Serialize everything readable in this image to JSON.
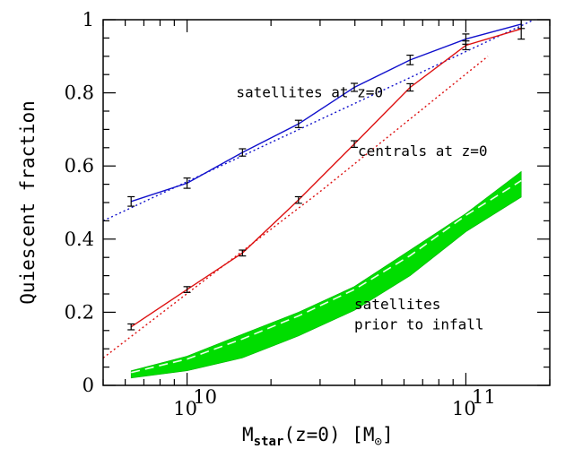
{
  "chart_data": {
    "type": "line",
    "xlabel_main": "M",
    "xlabel_sub": "star",
    "xlabel_rest": "(z=0) [M",
    "xlabel_sun": "⊙",
    "xlabel_close": "]",
    "ylabel": "Quiescent fraction",
    "x_scale": "log",
    "xlim": [
      5000000000.0,
      200000000000.0
    ],
    "ylim": [
      0,
      1
    ],
    "y_ticks": [
      0,
      0.2,
      0.4,
      0.6,
      0.8,
      1
    ],
    "y_tick_labels": [
      "0",
      "0.2",
      "0.4",
      "0.6",
      "0.8",
      "1"
    ],
    "x_ticks": [
      10000000000.0,
      100000000000.0
    ],
    "x_tick_bases": [
      "10",
      "10"
    ],
    "x_tick_exps": [
      "10",
      "11"
    ],
    "series": [
      {
        "color": "#1010cc",
        "x": [
          6300000000.0,
          10000000000.0,
          15800000000.0,
          25100000000.0,
          39800000000.0,
          63100000000.0,
          100000000000.0,
          158000000000.0
        ],
        "y": [
          0.503,
          0.553,
          0.637,
          0.715,
          0.815,
          0.89,
          0.947,
          0.988
        ],
        "err": [
          0.013,
          0.014,
          0.01,
          0.01,
          0.011,
          0.013,
          0.014,
          0.012
        ]
      },
      {
        "color": "#dd1010",
        "x": [
          6300000000.0,
          10000000000.0,
          15800000000.0,
          25100000000.0,
          39800000000.0,
          63100000000.0,
          100000000000.0,
          158000000000.0
        ],
        "y": [
          0.16,
          0.262,
          0.362,
          0.507,
          0.66,
          0.815,
          0.93,
          0.975
        ],
        "err": [
          0.008,
          0.008,
          0.008,
          0.009,
          0.009,
          0.01,
          0.012,
          0.028
        ]
      }
    ],
    "fits": [
      {
        "color": "#1010cc",
        "x": [
          5000000000.0,
          200000000000.0
        ],
        "y": [
          0.45,
          1.02
        ]
      },
      {
        "color": "#dd1010",
        "x": [
          5000000000.0,
          30000000000.0,
          120000000000.0
        ],
        "y": [
          0.075,
          0.53,
          0.9
        ]
      }
    ],
    "band": {
      "color": "#00dd00",
      "x": [
        6300000000.0,
        10000000000.0,
        15800000000.0,
        25100000000.0,
        39800000000.0,
        63100000000.0,
        100000000000.0,
        158000000000.0
      ],
      "upper": [
        0.04,
        0.08,
        0.14,
        0.2,
        0.27,
        0.37,
        0.47,
        0.585
      ],
      "lower": [
        0.02,
        0.04,
        0.075,
        0.135,
        0.205,
        0.3,
        0.42,
        0.515
      ],
      "dashed": [
        0.035,
        0.072,
        0.127,
        0.19,
        0.262,
        0.355,
        0.465,
        0.56
      ]
    },
    "annotations": [
      {
        "text": "satellites at z=0",
        "x": 15000000000.0,
        "y": 0.8
      },
      {
        "text": "centrals at z=0",
        "x": 41000000000.0,
        "y": 0.64
      },
      {
        "text": "satellites",
        "x": 39800000000.0,
        "y": 0.22
      },
      {
        "text": "prior to infall",
        "x": 39800000000.0,
        "y": 0.165
      }
    ]
  }
}
